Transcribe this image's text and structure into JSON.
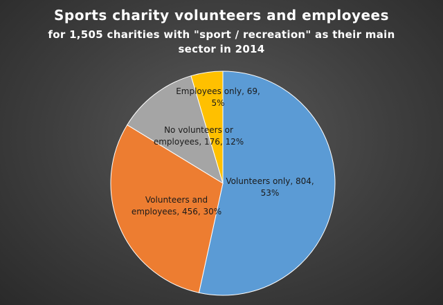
{
  "title": "Sports charity volunteers and employees",
  "subtitle_line1": "for 1,505 charities with \"sport / recreation\" as their main",
  "subtitle_line2": "sector in 2014",
  "chart_data": {
    "type": "pie",
    "title": "Sports charity volunteers and employees",
    "subtitle": "for 1,505 charities with \"sport / recreation\" as their main sector in 2014",
    "legend": "none",
    "slices": [
      {
        "name": "Volunteers only",
        "value": 804,
        "percent": 53,
        "color": "#5b9bd5",
        "label_lines": [
          "Volunteers only, 804,",
          "53%"
        ]
      },
      {
        "name": "Volunteers and employees",
        "value": 456,
        "percent": 30,
        "color": "#ed7d31",
        "label_lines": [
          "Volunteers and",
          "employees, 456, 30%"
        ]
      },
      {
        "name": "No volunteers or employees",
        "value": 176,
        "percent": 12,
        "color": "#a5a5a5",
        "label_lines": [
          "No volunteers or",
          "employees, 176, 12%"
        ]
      },
      {
        "name": "Employees only",
        "value": 69,
        "percent": 5,
        "color": "#ffc000",
        "label_lines": [
          "Employees only, 69,",
          "5%"
        ]
      }
    ]
  }
}
